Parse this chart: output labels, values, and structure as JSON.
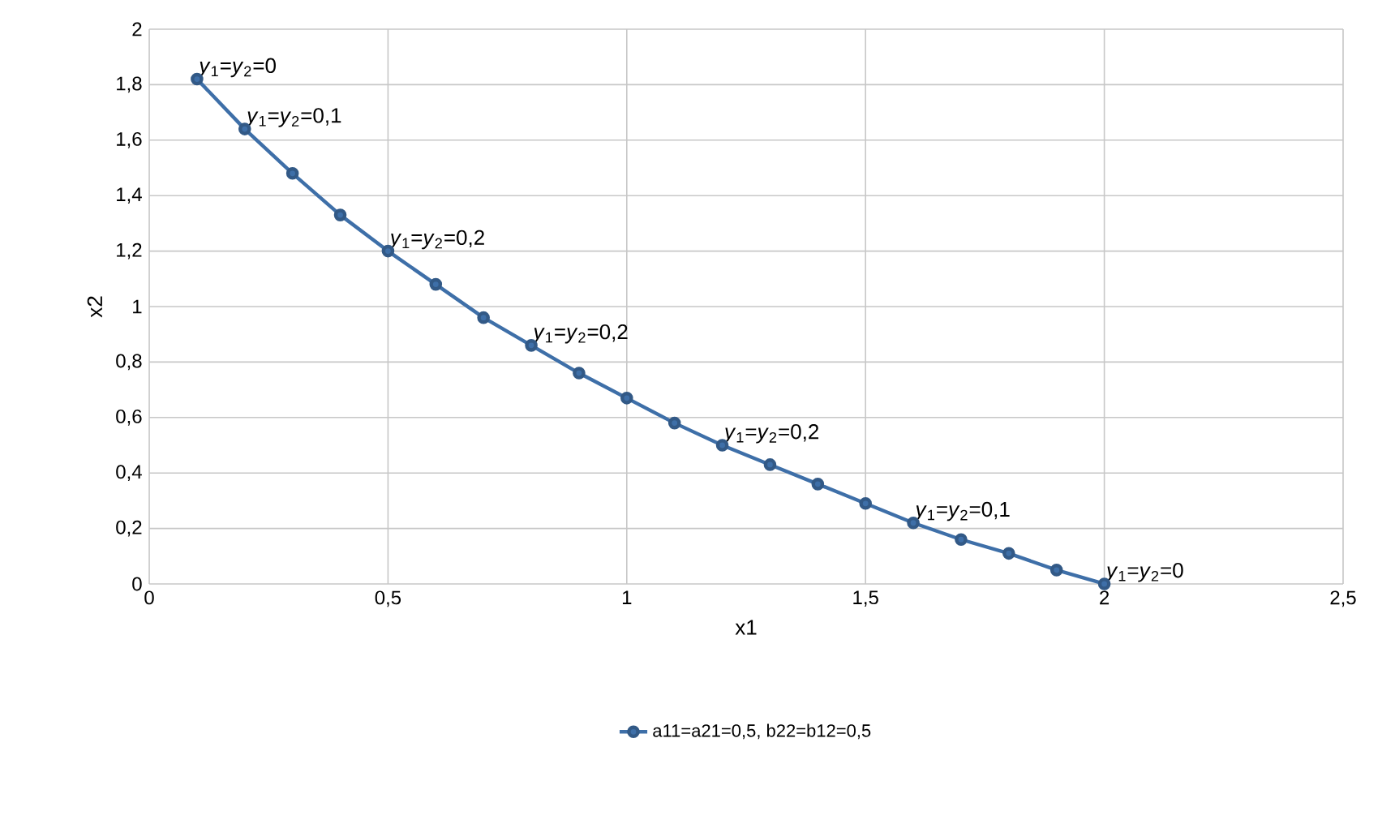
{
  "chart_data": {
    "type": "line",
    "xlabel": "x1",
    "ylabel": "x2",
    "x": [
      0.1,
      0.2,
      0.3,
      0.4,
      0.5,
      0.6,
      0.7,
      0.8,
      0.9,
      1.0,
      1.1,
      1.2,
      1.3,
      1.4,
      1.5,
      1.6,
      1.7,
      1.8,
      1.9,
      2.0
    ],
    "series": [
      {
        "name": "a11=a21=0,5, b22=b12=0,5",
        "color": "#3e6fa8",
        "values": [
          1.82,
          1.64,
          1.48,
          1.33,
          1.2,
          1.08,
          0.96,
          0.86,
          0.76,
          0.67,
          0.58,
          0.5,
          0.43,
          0.36,
          0.29,
          0.22,
          0.16,
          0.11,
          0.05,
          0
        ]
      }
    ],
    "xlim": [
      0,
      2.5
    ],
    "ylim": [
      0,
      2
    ],
    "xticks": [
      0,
      {
        "value": 0.5,
        "label": "0,5"
      },
      1,
      {
        "value": 1.5,
        "label": "1,5"
      },
      2,
      {
        "value": 2.5,
        "label": "2,5"
      }
    ],
    "yticks": [
      0,
      {
        "value": 0.2,
        "label": "0,2"
      },
      {
        "value": 0.4,
        "label": "0,4"
      },
      {
        "value": 0.6,
        "label": "0,6"
      },
      {
        "value": 0.8,
        "label": "0,8"
      },
      1,
      {
        "value": 1.2,
        "label": "1,2"
      },
      {
        "value": 1.4,
        "label": "1,4"
      },
      {
        "value": 1.6,
        "label": "1,6"
      },
      {
        "value": 1.8,
        "label": "1,8"
      },
      2
    ],
    "annotations": [
      {
        "text": "*y*$_{1}$=*y*$_{2}$=0",
        "x": 0.1,
        "y": 1.82
      },
      {
        "text": "*y*$_{1}$=*y*$_{2}$=0,1",
        "x": 0.2,
        "y": 1.64
      },
      {
        "text": "*y*$_{1}$=*y*$_{2}$=0,2",
        "x": 0.5,
        "y": 1.2
      },
      {
        "text": "*y*$_{1}$=*y*$_{2}$=0,2",
        "x": 0.8,
        "y": 0.86
      },
      {
        "text": "*y*$_{1}$=*y*$_{2}$=0,2",
        "x": 1.2,
        "y": 0.5
      },
      {
        "text": "*y*$_{1}$=*y*$_{2}$=0,1",
        "x": 1.6,
        "y": 0.22
      },
      {
        "text": "*y*$_{1}$=*y*$_{2}$=0",
        "x": 2.0,
        "y": 0
      }
    ],
    "grid": true,
    "legend": "bottom",
    "marker": "circle",
    "line_style": "solid"
  }
}
